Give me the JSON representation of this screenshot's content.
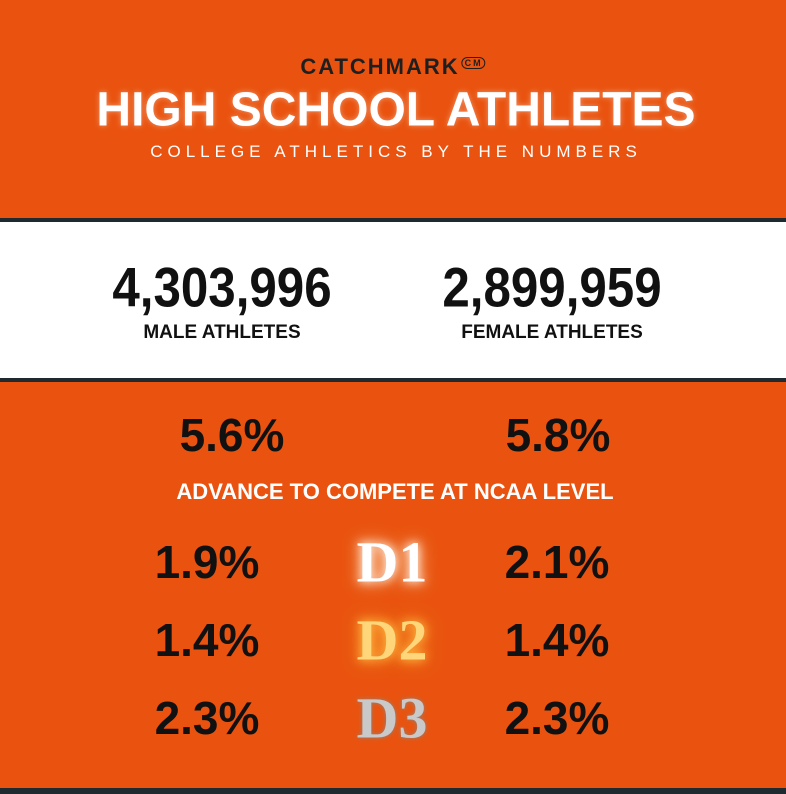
{
  "header": {
    "logo": "CATCHMARK",
    "logo_mark": "CM",
    "title": "HIGH SCHOOL ATHLETES",
    "subtitle": "COLLEGE ATHLETICS BY THE NUMBERS"
  },
  "totals": [
    {
      "value": "4,303,996",
      "label": "MALE ATHLETES"
    },
    {
      "value": "2,899,959",
      "label": "FEMALE ATHLETES"
    }
  ],
  "advance": {
    "male": "5.6%",
    "female": "5.8%",
    "label": "ADVANCE TO COMPETE AT NCAA LEVEL"
  },
  "divisions": [
    {
      "name": "D1",
      "male": "1.9%",
      "female": "2.1%"
    },
    {
      "name": "D2",
      "male": "1.4%",
      "female": "1.4%"
    },
    {
      "name": "D3",
      "male": "2.3%",
      "female": "2.3%"
    }
  ]
}
